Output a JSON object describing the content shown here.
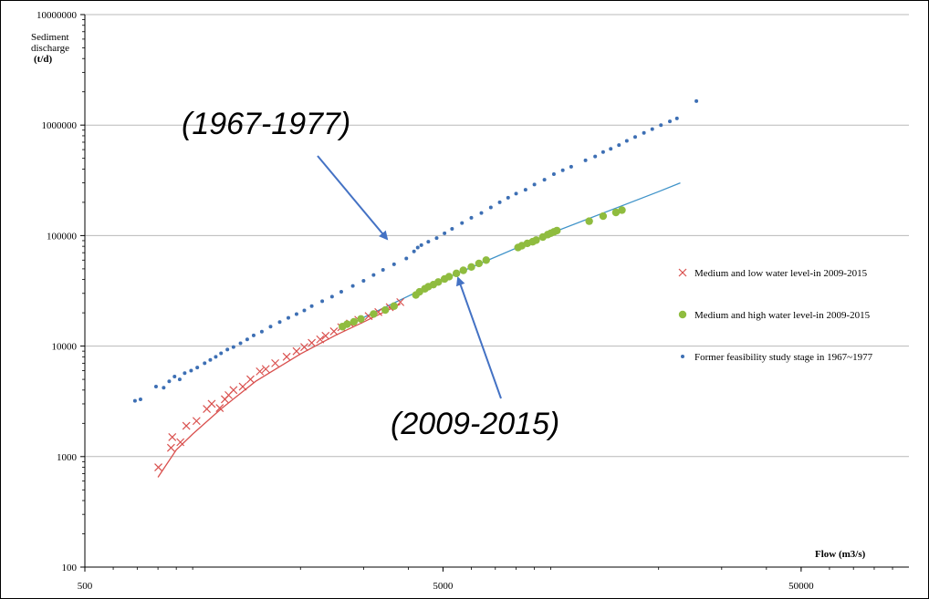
{
  "chart_data": {
    "type": "scatter",
    "x_scale": "log",
    "y_scale": "log",
    "xlim": [
      500,
      100000
    ],
    "ylim": [
      100,
      10000000
    ],
    "grid": "horizontal",
    "legend_position": "right",
    "xlabel": "Flow (m3/s)",
    "ylabel": "Sediment discharge (t/d)",
    "ylabel_lines": [
      "Sediment",
      "discharge",
      "(t/d)"
    ],
    "x_ticks": [
      {
        "value": 500,
        "label": "500"
      },
      {
        "value": 5000,
        "label": "5000"
      },
      {
        "value": 50000,
        "label": "50000"
      }
    ],
    "y_ticks": [
      {
        "value": 100,
        "label": "100"
      },
      {
        "value": 1000,
        "label": "1000"
      },
      {
        "value": 10000,
        "label": "10000"
      },
      {
        "value": 100000,
        "label": "100000"
      },
      {
        "value": 1000000,
        "label": "1000000"
      },
      {
        "value": 10000000,
        "label": "10000000"
      }
    ],
    "series": [
      {
        "name": "Medium and low water level-in 2009-2015",
        "marker": "x",
        "color": "#d9504e",
        "points": [
          [
            802,
            800
          ],
          [
            870,
            1200
          ],
          [
            877,
            1500
          ],
          [
            924,
            1350
          ],
          [
            960,
            1900
          ],
          [
            1025,
            2100
          ],
          [
            1095,
            2700
          ],
          [
            1130,
            3000
          ],
          [
            1190,
            2750
          ],
          [
            1230,
            3300
          ],
          [
            1260,
            3600
          ],
          [
            1300,
            4000
          ],
          [
            1380,
            4300
          ],
          [
            1450,
            5000
          ],
          [
            1540,
            5900
          ],
          [
            1600,
            6200
          ],
          [
            1700,
            7000
          ],
          [
            1830,
            8000
          ],
          [
            1950,
            9000
          ],
          [
            2050,
            9800
          ],
          [
            2150,
            10700
          ],
          [
            2270,
            11500
          ],
          [
            2350,
            12400
          ],
          [
            2480,
            13600
          ],
          [
            2600,
            14800
          ],
          [
            2750,
            16000
          ],
          [
            2900,
            17300
          ],
          [
            3100,
            18700
          ],
          [
            3300,
            20300
          ],
          [
            3550,
            22500
          ],
          [
            3800,
            25000
          ]
        ]
      },
      {
        "name": "Medium and high water level-in 2009-2015",
        "marker": "circle",
        "color": "#8fbc3f",
        "points": [
          [
            2620,
            15000
          ],
          [
            2700,
            15800
          ],
          [
            2820,
            16600
          ],
          [
            2950,
            17600
          ],
          [
            3200,
            19500
          ],
          [
            3450,
            21200
          ],
          [
            3650,
            23000
          ],
          [
            4200,
            29000
          ],
          [
            4300,
            31000
          ],
          [
            4450,
            33000
          ],
          [
            4550,
            34500
          ],
          [
            4700,
            36000
          ],
          [
            4850,
            38000
          ],
          [
            5050,
            40500
          ],
          [
            5200,
            42500
          ],
          [
            5450,
            45500
          ],
          [
            5700,
            48500
          ],
          [
            6000,
            52000
          ],
          [
            6300,
            56000
          ],
          [
            6600,
            60000
          ],
          [
            8100,
            78000
          ],
          [
            8300,
            81000
          ],
          [
            8600,
            85000
          ],
          [
            8900,
            88000
          ],
          [
            9100,
            91000
          ],
          [
            9500,
            97000
          ],
          [
            9800,
            102000
          ],
          [
            10000,
            105000
          ],
          [
            10200,
            108000
          ],
          [
            10400,
            111000
          ],
          [
            12800,
            135000
          ],
          [
            14000,
            150000
          ],
          [
            15200,
            162000
          ],
          [
            15800,
            170000
          ]
        ]
      },
      {
        "name": "Former feasibility study stage in 1967~1977",
        "marker": "dot",
        "color": "#3d6fb4",
        "points": [
          [
            690,
            3200
          ],
          [
            715,
            3300
          ],
          [
            790,
            4300
          ],
          [
            830,
            4200
          ],
          [
            860,
            4800
          ],
          [
            890,
            5300
          ],
          [
            920,
            5000
          ],
          [
            950,
            5700
          ],
          [
            990,
            6000
          ],
          [
            1030,
            6400
          ],
          [
            1080,
            7000
          ],
          [
            1120,
            7500
          ],
          [
            1160,
            8000
          ],
          [
            1200,
            8600
          ],
          [
            1250,
            9300
          ],
          [
            1300,
            9800
          ],
          [
            1360,
            10600
          ],
          [
            1420,
            11500
          ],
          [
            1480,
            12500
          ],
          [
            1560,
            13500
          ],
          [
            1650,
            15000
          ],
          [
            1750,
            16500
          ],
          [
            1850,
            18000
          ],
          [
            1950,
            19500
          ],
          [
            2050,
            21000
          ],
          [
            2150,
            23000
          ],
          [
            2300,
            25500
          ],
          [
            2450,
            28000
          ],
          [
            2600,
            31000
          ],
          [
            2800,
            35000
          ],
          [
            3000,
            39000
          ],
          [
            3200,
            44000
          ],
          [
            3400,
            49000
          ],
          [
            3650,
            55000
          ],
          [
            3950,
            62000
          ],
          [
            4150,
            72000
          ],
          [
            4250,
            78000
          ],
          [
            4350,
            82000
          ],
          [
            4550,
            88000
          ],
          [
            4800,
            95000
          ],
          [
            5050,
            105000
          ],
          [
            5300,
            115000
          ],
          [
            5650,
            130000
          ],
          [
            6000,
            145000
          ],
          [
            6400,
            160000
          ],
          [
            6800,
            180000
          ],
          [
            7200,
            200000
          ],
          [
            7600,
            220000
          ],
          [
            8000,
            240000
          ],
          [
            8500,
            260000
          ],
          [
            9000,
            290000
          ],
          [
            9600,
            320000
          ],
          [
            10200,
            360000
          ],
          [
            10800,
            390000
          ],
          [
            11400,
            420000
          ],
          [
            12500,
            480000
          ],
          [
            13300,
            520000
          ],
          [
            14000,
            570000
          ],
          [
            14700,
            610000
          ],
          [
            15500,
            660000
          ],
          [
            16300,
            720000
          ],
          [
            17200,
            780000
          ],
          [
            18200,
            850000
          ],
          [
            19200,
            920000
          ],
          [
            20300,
            1000000
          ],
          [
            21500,
            1080000
          ],
          [
            22500,
            1150000
          ],
          [
            25500,
            1650000
          ]
        ]
      }
    ],
    "fit_lines": [
      {
        "color": "#d9504e",
        "points": [
          [
            800,
            650
          ],
          [
            900,
            1150
          ],
          [
            1000,
            1600
          ],
          [
            1200,
            2700
          ],
          [
            1500,
            4800
          ],
          [
            2000,
            8500
          ],
          [
            2500,
            12500
          ],
          [
            3000,
            16500
          ],
          [
            3800,
            24000
          ]
        ]
      },
      {
        "color": "#3f93c9",
        "points": [
          [
            2600,
            14500
          ],
          [
            5000,
            40000
          ],
          [
            10000,
            105000
          ],
          [
            20000,
            250000
          ],
          [
            23000,
            300000
          ]
        ]
      }
    ],
    "annotations": [
      {
        "text": "(1967-1977)",
        "target": [
          4250,
          79000
        ]
      },
      {
        "text": "(2009-2015)",
        "target": [
          6200,
          60000
        ]
      }
    ]
  }
}
